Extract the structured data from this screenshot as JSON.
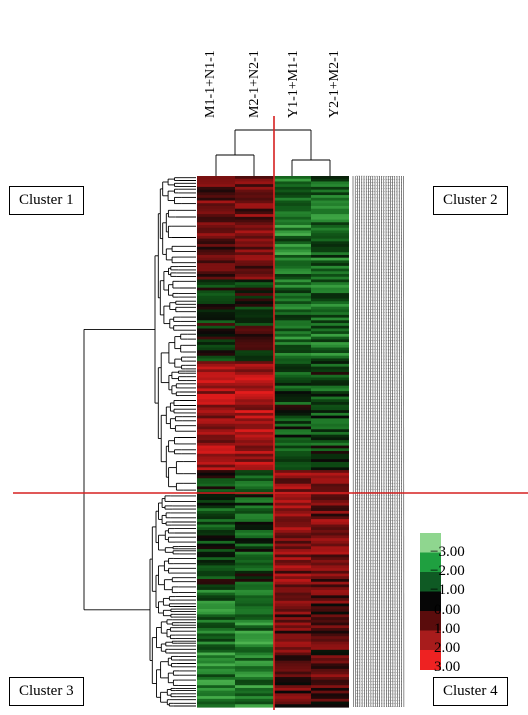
{
  "chart_data": {
    "type": "heatmap",
    "columns": [
      "M1-1+N1-1",
      "M2-1+N2-1",
      "Y1-1+M1-1",
      "Y2-1+M2-1"
    ],
    "clusters": [
      "Cluster 1",
      "Cluster 2",
      "Cluster 3",
      "Cluster 4"
    ],
    "legend": {
      "colors": [
        "#8fd68f",
        "#1fa040",
        "#0f5a24",
        "#060606",
        "#5a0c0c",
        "#a81c1c",
        "#ee2222"
      ],
      "ticks": [
        "−3.00",
        "−2.00",
        "−1.00",
        "0.00",
        "1.00",
        "2.00",
        "3.00"
      ]
    },
    "scale_range": [
      -3,
      3
    ],
    "row_blocks": [
      {
        "rows": 38,
        "mean": [
          0.9,
          1.0,
          -1.4,
          -1.2
        ]
      },
      {
        "rows": 30,
        "mean": [
          -0.3,
          -0.1,
          -1.2,
          -1.3
        ]
      },
      {
        "rows": 40,
        "mean": [
          1.7,
          1.8,
          -0.6,
          -0.7
        ]
      },
      {
        "rows": 42,
        "mean": [
          -0.6,
          -0.7,
          1.3,
          1.1
        ]
      },
      {
        "rows": 45,
        "mean": [
          -1.4,
          -1.5,
          0.9,
          0.8
        ]
      }
    ],
    "divider_color": "#d62020"
  }
}
